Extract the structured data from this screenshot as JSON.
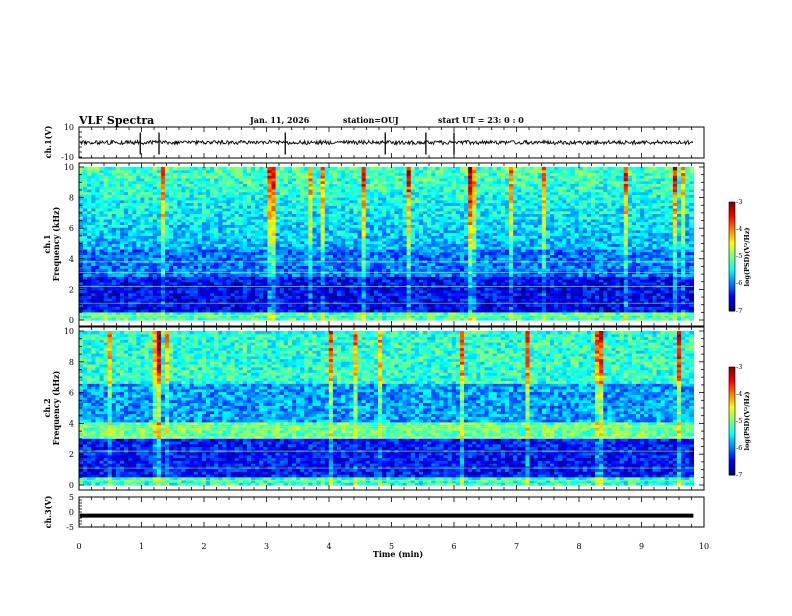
{
  "header": {
    "title": "VLF Spectra",
    "date": "Jan. 11, 2026",
    "station": "station=OUJ",
    "start_ut": "start UT =  23: 0  : 0"
  },
  "chart_data": [
    {
      "type": "line",
      "id": "ch1-waveform",
      "ylabel": "ch.1(V)",
      "ylim": [
        -10,
        10
      ],
      "yticks": [
        "10",
        "-10"
      ],
      "baseline": 0,
      "spike_times_min": [
        0.98,
        1.28,
        3.3,
        4.9,
        5.55,
        6.0
      ]
    },
    {
      "type": "heatmap",
      "id": "ch1-spectrogram",
      "ylabel": "Frequency (kHz)",
      "channel_label": "ch.1",
      "ylim": [
        0,
        10
      ],
      "yticks": [
        "0",
        "2",
        "4",
        "6",
        "8",
        "10"
      ],
      "colorbar": {
        "label": "log(PSD)(V²/Hz)",
        "range": [
          -7,
          -3
        ],
        "ticks": [
          "-3",
          "-4",
          "-5",
          "-6",
          "-7"
        ]
      },
      "quiet_band_khz": [
        0.5,
        2.8
      ],
      "active_band_khz": [
        4.5,
        10
      ]
    },
    {
      "type": "heatmap",
      "id": "ch2-spectrogram",
      "ylabel": "Frequency (kHz)",
      "channel_label": "ch.2",
      "ylim": [
        0,
        10
      ],
      "yticks": [
        "0",
        "2",
        "4",
        "6",
        "8",
        "10"
      ],
      "colorbar": {
        "label": "log(PSD)(V²/Hz)",
        "range": [
          -7,
          -3
        ],
        "ticks": [
          "-3",
          "-4",
          "-5",
          "-6",
          "-7"
        ]
      },
      "quiet_band_khz": [
        0.5,
        3.0
      ],
      "active_band_khz": [
        3.0,
        10
      ]
    },
    {
      "type": "line",
      "id": "ch3-waveform",
      "ylabel": "ch.3(V)",
      "ylim": [
        -5,
        5
      ],
      "yticks": [
        "5",
        "0",
        "-5"
      ],
      "baseline": -1.2,
      "spike_times_min": []
    }
  ],
  "xaxis": {
    "label": "Time  (min)",
    "range": [
      0,
      10
    ],
    "data_end": 9.83,
    "ticks": [
      "0",
      "1",
      "2",
      "3",
      "4",
      "5",
      "6",
      "7",
      "8",
      "9",
      "10"
    ]
  }
}
